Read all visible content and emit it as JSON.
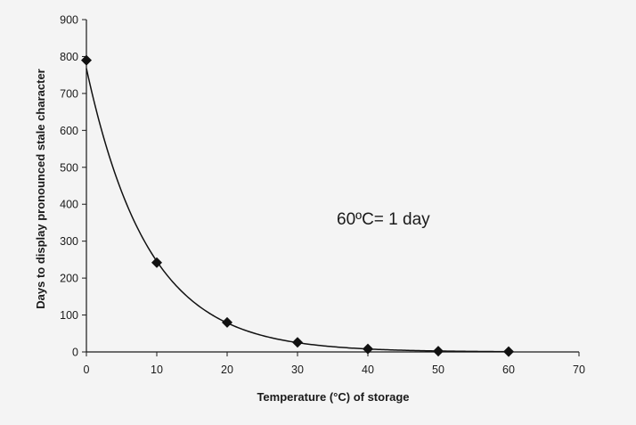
{
  "chart_data": {
    "type": "scatter",
    "title": "",
    "xlabel": "Temperature (°C) of storage",
    "ylabel": "Days to display pronounced stale character",
    "xlim": [
      0,
      70
    ],
    "ylim": [
      0,
      900
    ],
    "x_ticks": [
      0,
      10,
      20,
      30,
      40,
      50,
      60,
      70
    ],
    "y_ticks": [
      0,
      100,
      200,
      300,
      400,
      500,
      600,
      700,
      800,
      900
    ],
    "grid": false,
    "legend": "none",
    "series": [
      {
        "marker": "diamond",
        "x": [
          0,
          10,
          20,
          30,
          40,
          50,
          60
        ],
        "y": [
          790,
          242,
          80,
          26,
          8,
          2,
          1
        ]
      }
    ],
    "trendline": {
      "type": "exponential",
      "x_range": [
        0,
        60
      ]
    },
    "annotations": [
      "60ºC= 1 day"
    ],
    "colors": {
      "background": "#f4f4f4",
      "axis": "#1a1a1a",
      "marker": "#111111",
      "curve": "#111111"
    }
  }
}
